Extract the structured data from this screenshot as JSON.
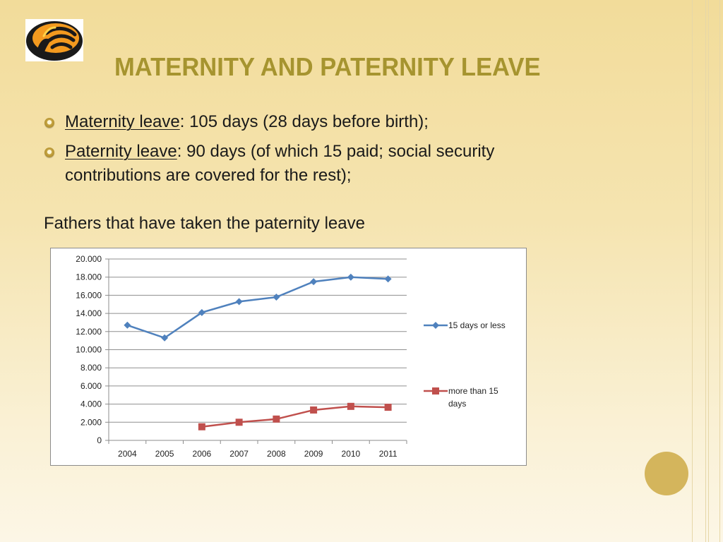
{
  "slide": {
    "title": "MATERNITY AND PATERNITY LEAVE",
    "bullets": [
      {
        "term": "Maternity leave",
        "text": ": 105 days (28 days before birth);"
      },
      {
        "term": "Paternity leave",
        "text": ": 90 days (of which 15 paid; social security contributions are covered for the rest);"
      }
    ],
    "subheading": "Fathers that have taken the paternity leave"
  },
  "colors": {
    "title": "#a6942f",
    "series_blue": "#4f81bd",
    "series_red": "#c0504d",
    "accent_circle": "#d4b55c"
  },
  "chart_data": {
    "type": "line",
    "categories": [
      "2004",
      "2005",
      "2006",
      "2007",
      "2008",
      "2009",
      "2010",
      "2011"
    ],
    "series": [
      {
        "name": "15 days or less",
        "color": "#4f81bd",
        "marker": "diamond",
        "values": [
          12700,
          11300,
          14100,
          15300,
          15800,
          17500,
          18000,
          17800
        ]
      },
      {
        "name": "more than 15 days",
        "color": "#c0504d",
        "marker": "square",
        "values": [
          null,
          null,
          1500,
          2000,
          2350,
          3350,
          3750,
          3650
        ]
      }
    ],
    "y_ticks": [
      "20.000",
      "18.000",
      "16.000",
      "14.000",
      "12.000",
      "10.000",
      "8.000",
      "6.000",
      "4.000",
      "2.000",
      "0"
    ],
    "ylim": [
      0,
      20000
    ],
    "grid": true,
    "legend": "right"
  }
}
